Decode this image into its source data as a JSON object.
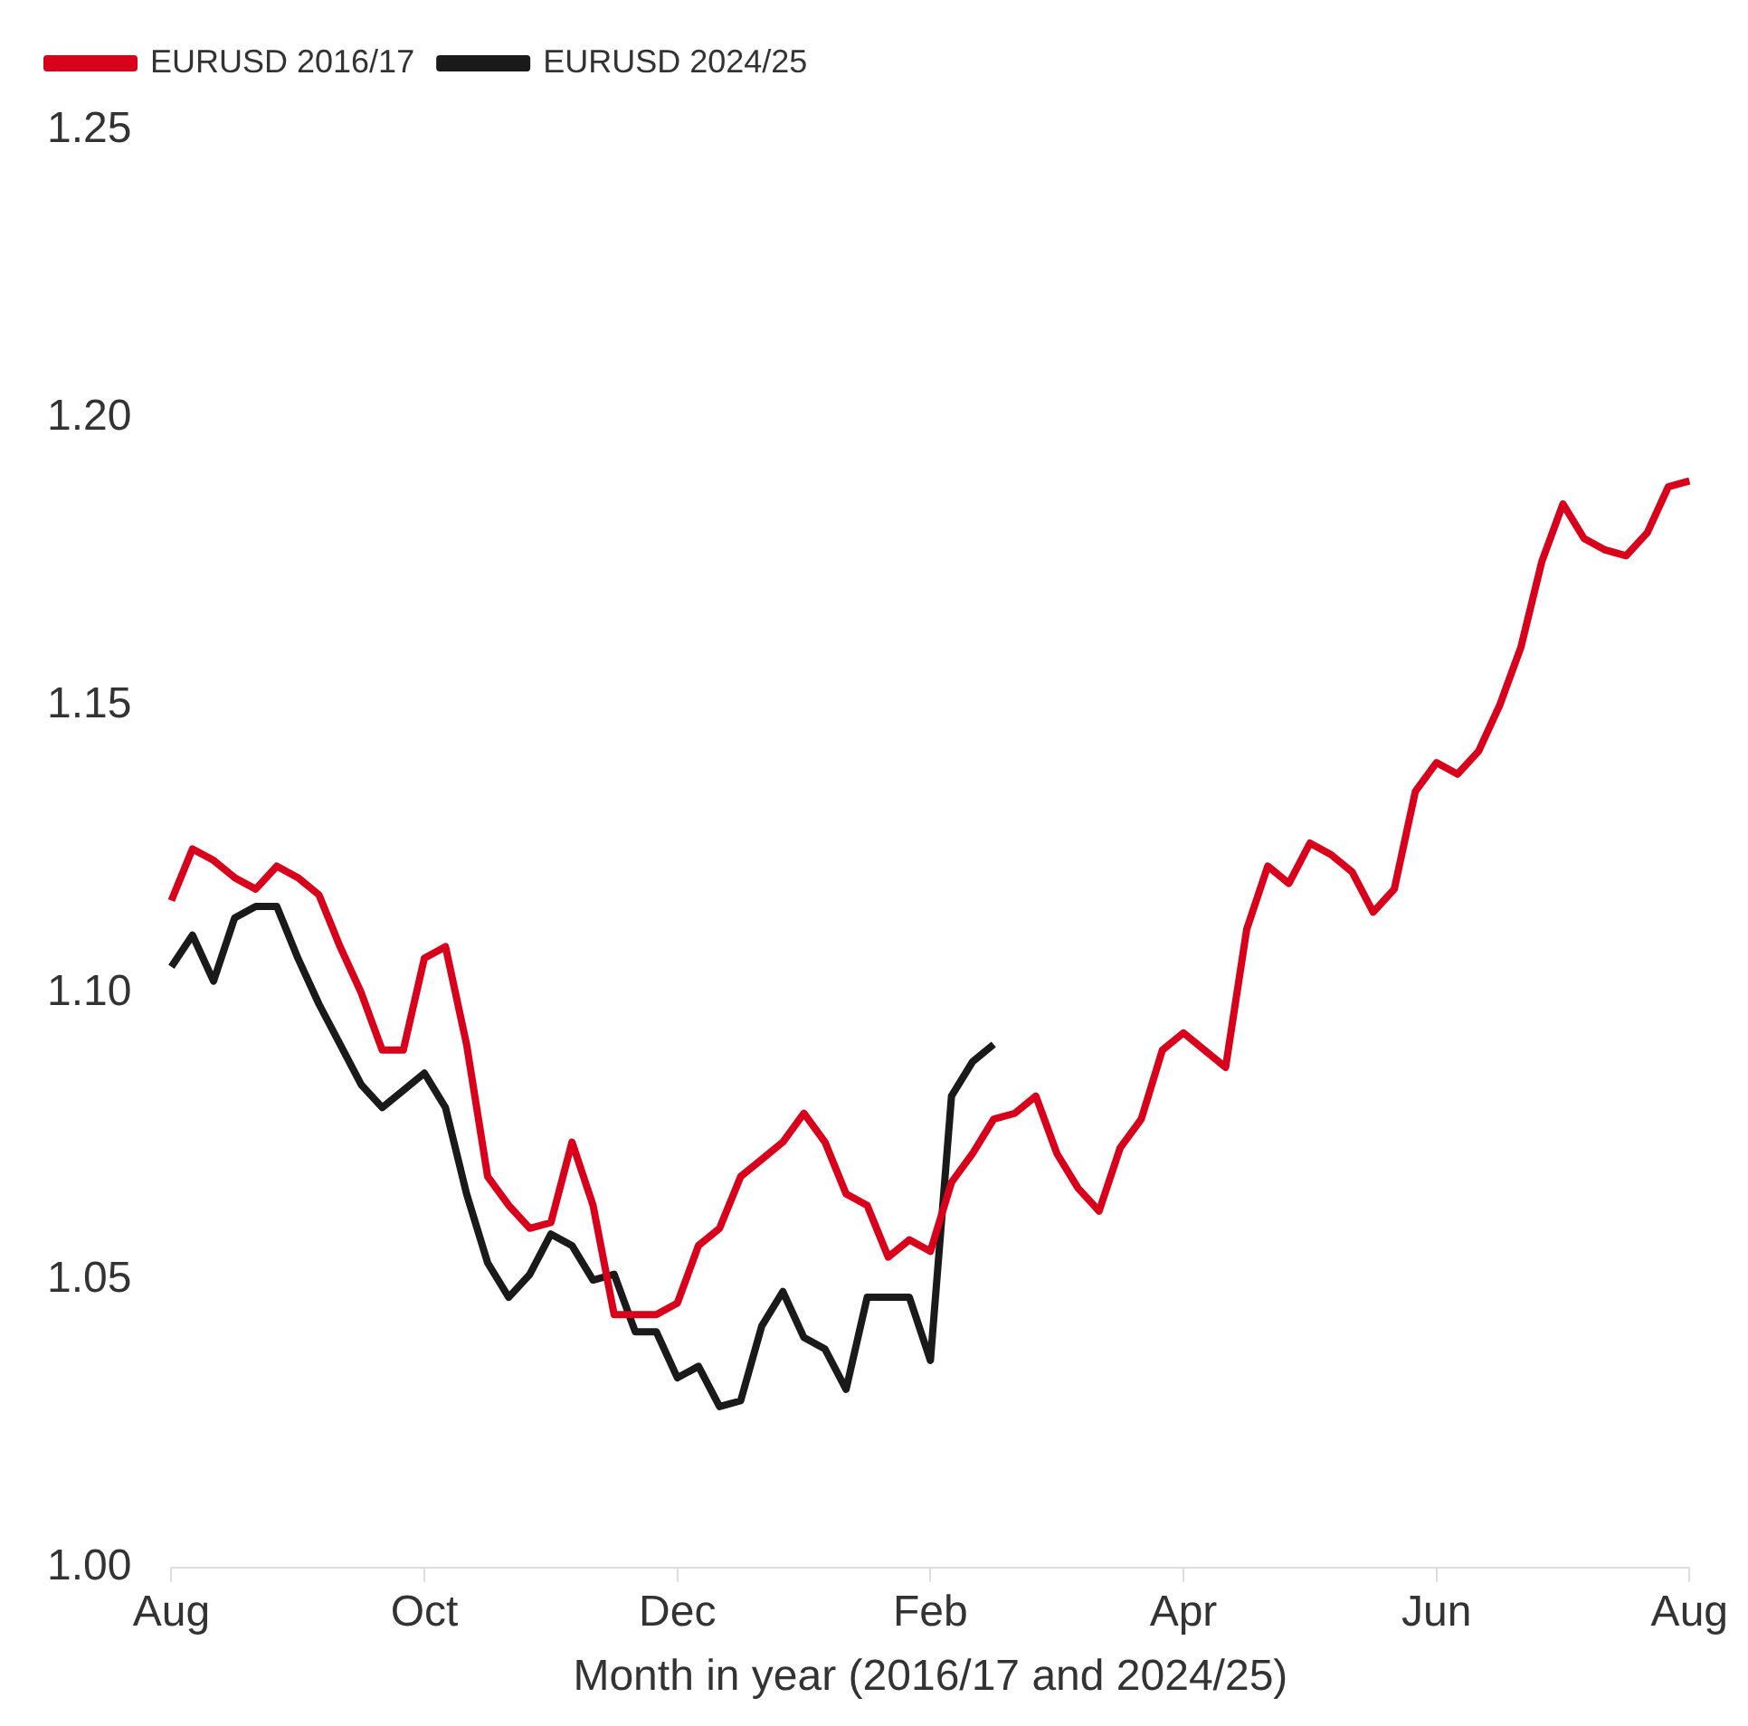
{
  "chart_data": {
    "type": "line",
    "xlabel": "Month in year (2016/17 and 2024/25)",
    "categories": [
      "Aug",
      null,
      null,
      null,
      null,
      null,
      null,
      null,
      null,
      null,
      null,
      null,
      "Oct",
      null,
      null,
      null,
      null,
      null,
      null,
      null,
      null,
      null,
      null,
      null,
      "Dec",
      null,
      null,
      null,
      null,
      null,
      null,
      null,
      null,
      null,
      null,
      null,
      "Feb",
      null,
      null,
      null,
      null,
      null,
      null,
      null,
      null,
      null,
      null,
      null,
      "Apr",
      null,
      null,
      null,
      null,
      null,
      null,
      null,
      null,
      null,
      null,
      null,
      "Jun",
      null,
      null,
      null,
      null,
      null,
      null,
      null,
      null,
      null,
      null,
      null,
      "Aug"
    ],
    "ylim": [
      1,
      1.25
    ],
    "yticks": [
      {
        "value": 1,
        "label": "1.00"
      },
      1.05,
      {
        "value": 1.1,
        "label": "1.10"
      },
      1.15,
      {
        "value": 1.2,
        "label": "1.20"
      },
      1.25
    ],
    "grid": false,
    "legend": "top left",
    "marker": "none",
    "line_style": "solid",
    "series": [
      {
        "name": "EURUSD 2016/17",
        "color": "#d9001b",
        "values": [
          1.116,
          1.125,
          1.123,
          1.12,
          1.118,
          1.122,
          1.12,
          1.117,
          1.108,
          1.1,
          1.09,
          1.09,
          1.106,
          1.108,
          1.091,
          1.068,
          1.063,
          1.059,
          1.06,
          1.074,
          1.063,
          1.044,
          1.044,
          1.044,
          1.046,
          1.056,
          1.059,
          1.068,
          1.071,
          1.074,
          1.079,
          1.074,
          1.065,
          1.063,
          1.054,
          1.057,
          1.055,
          1.067,
          1.072,
          1.078,
          1.079,
          1.082,
          1.072,
          1.066,
          1.062,
          1.073,
          1.078,
          1.09,
          1.093,
          1.09,
          1.087,
          1.111,
          1.122,
          1.119,
          1.126,
          1.124,
          1.121,
          1.114,
          1.118,
          1.135,
          1.14,
          1.138,
          1.142,
          1.15,
          1.16,
          1.175,
          1.185,
          1.179,
          1.177,
          1.176,
          1.18,
          1.188,
          1.189
        ]
      },
      {
        "name": "EURUSD 2024/25",
        "color": "#1a1a1a",
        "values": [
          1.1045,
          1.11,
          1.102,
          1.113,
          1.115,
          1.115,
          1.106,
          1.098,
          1.091,
          1.084,
          1.08,
          1.083,
          1.086,
          1.08,
          1.065,
          1.053,
          1.047,
          1.051,
          1.058,
          1.056,
          1.05,
          1.051,
          1.041,
          1.041,
          1.033,
          1.035,
          1.028,
          1.029,
          1.042,
          1.048,
          1.04,
          1.038,
          1.031,
          1.047,
          1.047,
          1.047,
          1.036,
          1.082,
          1.088,
          1.091,
          null,
          null,
          null,
          null,
          null,
          null,
          null,
          null,
          null,
          null,
          null,
          null,
          null,
          null,
          null,
          null,
          null,
          null,
          null,
          null,
          null,
          null,
          null,
          null,
          null,
          null,
          null,
          null,
          null,
          null,
          null,
          null,
          null
        ]
      }
    ]
  }
}
